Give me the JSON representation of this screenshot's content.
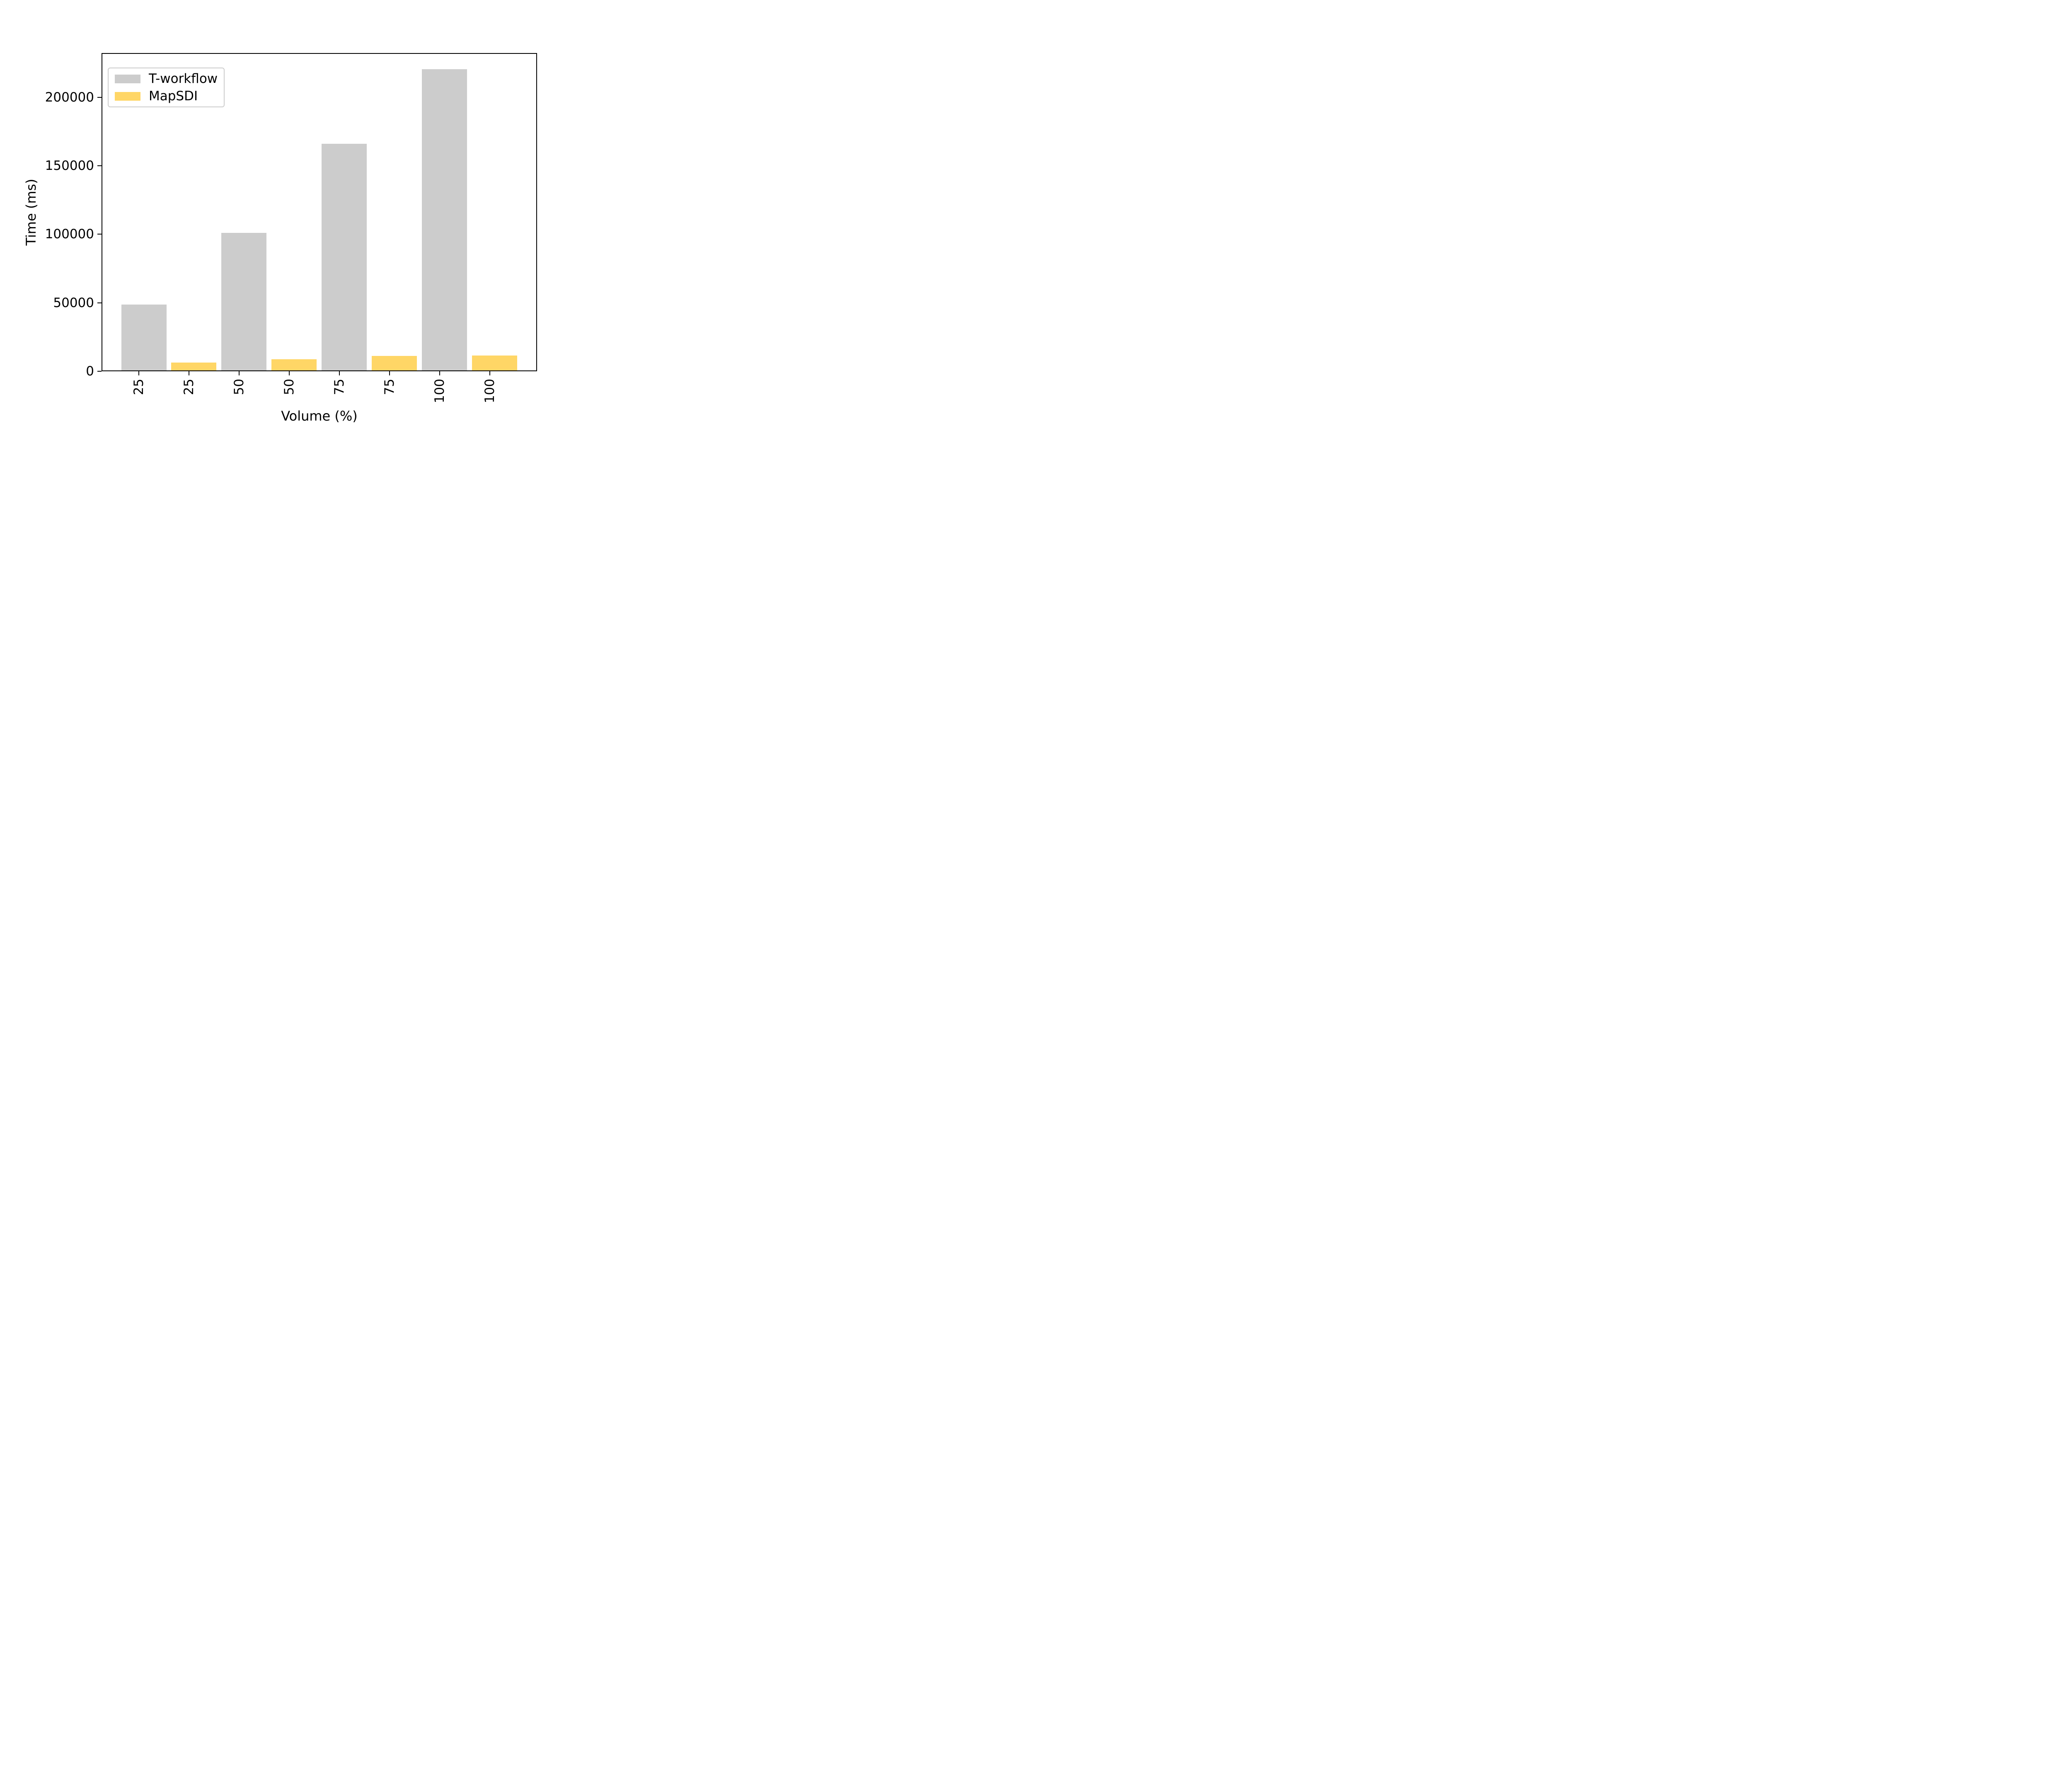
{
  "chart_data": {
    "type": "bar",
    "title": "",
    "xlabel": "Volume (%)",
    "ylabel": "Time (ms)",
    "categories": [
      "25",
      "25",
      "50",
      "50",
      "75",
      "75",
      "100",
      "100"
    ],
    "group_labels": [
      "25",
      "50",
      "75",
      "100"
    ],
    "series": [
      {
        "name": "T-workflow",
        "color": "#cccccc",
        "values": [
          48000,
          100500,
          165300,
          219700
        ]
      },
      {
        "name": "MapSDI",
        "color": "#ffd666",
        "values": [
          5700,
          8100,
          10700,
          11000
        ]
      }
    ],
    "bar_order": "alternating T-workflow / MapSDI for each volume group",
    "ylim": [
      0,
      231000
    ],
    "yticks": [
      0,
      50000,
      100000,
      150000,
      200000
    ],
    "xtick_label_rotation": 90,
    "grid": false,
    "axis_color": "#000000",
    "legend": {
      "position": "upper left",
      "entries": [
        {
          "label": "T-workflow",
          "color": "#cccccc"
        },
        {
          "label": "MapSDI",
          "color": "#ffd666"
        }
      ]
    }
  }
}
